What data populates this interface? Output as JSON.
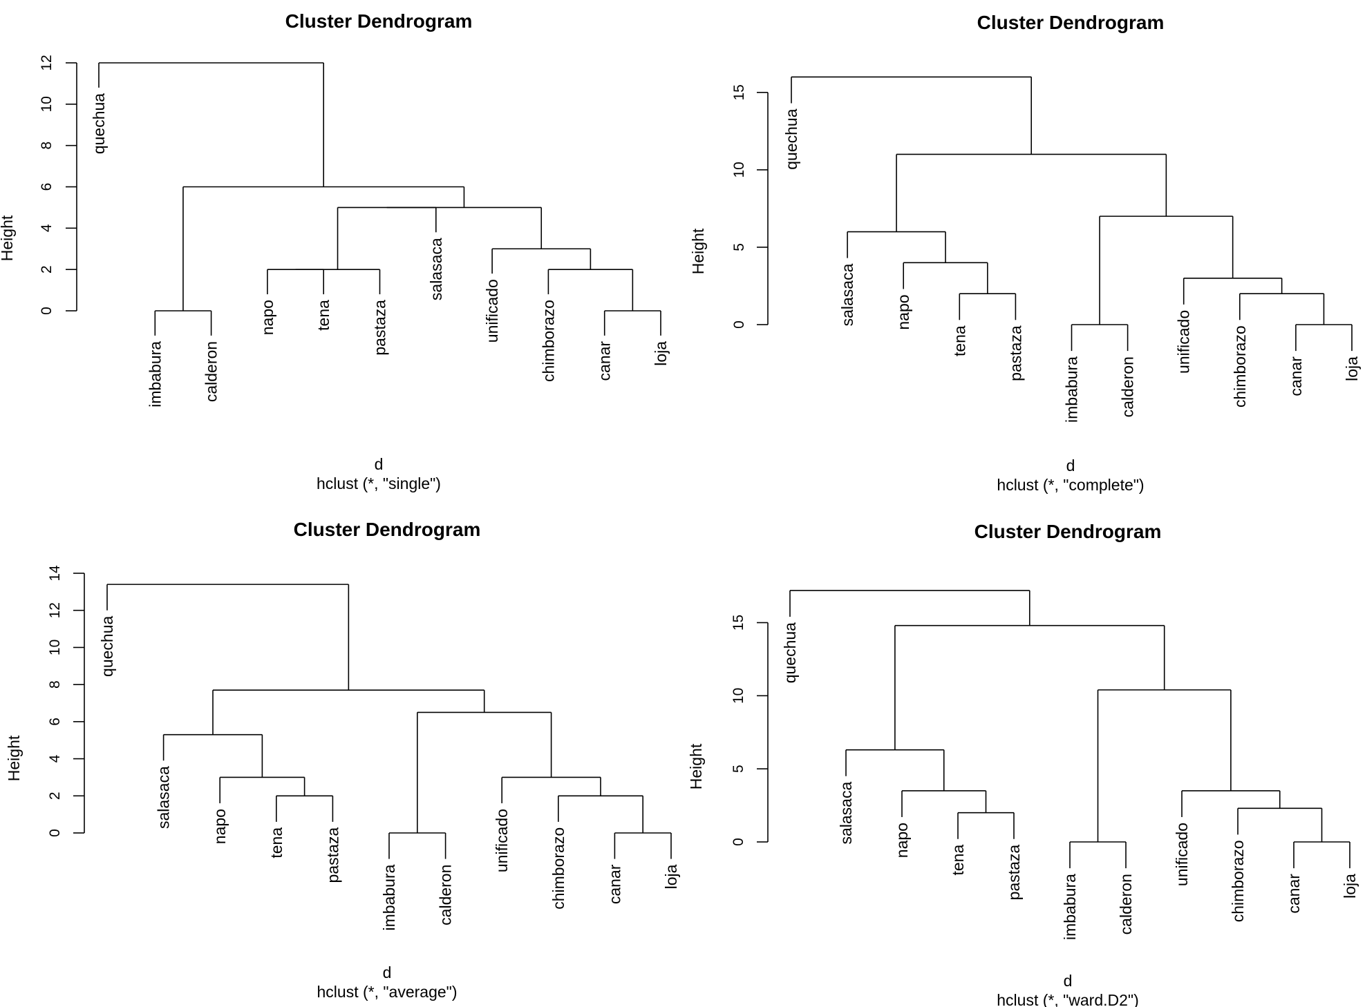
{
  "chart_data": [
    {
      "type": "dendrogram",
      "title": "Cluster Dendrogram",
      "xlabel": "d",
      "sublabel": "hclust (*, \"single\")",
      "ylabel": "Height",
      "yticks": [
        0,
        2,
        4,
        6,
        8,
        10,
        12
      ],
      "ylim": [
        0,
        12
      ],
      "leaves": [
        "quechua",
        "imbabura",
        "calderon",
        "napo",
        "tena",
        "pastaza",
        "salasaca",
        "unificado",
        "chimborazo",
        "canar",
        "loja"
      ],
      "merges": [
        {
          "a": "imbabura",
          "b": "calderon",
          "height": 0.0
        },
        {
          "a": "canar",
          "b": "loja",
          "height": 0.0
        },
        {
          "a": "napo",
          "b": "tena",
          "height": 2.0
        },
        {
          "a": "chimborazo",
          "b": "canar+loja",
          "height": 2.0
        },
        {
          "a": "napo+tena",
          "b": "pastaza",
          "height": 2.0
        },
        {
          "a": "unificado",
          "b": "chimborazo+canar+loja",
          "height": 3.0
        },
        {
          "a": "napo+tena+pastaza",
          "b": "salasaca",
          "height": 5.0
        },
        {
          "a": "napo..salasaca",
          "b": "unificado..loja",
          "height": 5.0
        },
        {
          "a": "imbabura+calderon",
          "b": "napo..loja",
          "height": 6.0
        },
        {
          "a": "quechua",
          "b": "imbabura..loja",
          "height": 12.0
        }
      ]
    },
    {
      "type": "dendrogram",
      "title": "Cluster Dendrogram",
      "xlabel": "d",
      "sublabel": "hclust (*, \"complete\")",
      "ylabel": "Height",
      "yticks": [
        0,
        5,
        10,
        15
      ],
      "ylim": [
        0,
        17
      ],
      "leaves": [
        "quechua",
        "salasaca",
        "napo",
        "tena",
        "pastaza",
        "imbabura",
        "calderon",
        "unificado",
        "chimborazo",
        "canar",
        "loja"
      ],
      "merges": [
        {
          "a": "imbabura",
          "b": "calderon",
          "height": 0.0
        },
        {
          "a": "canar",
          "b": "loja",
          "height": 0.0
        },
        {
          "a": "tena",
          "b": "pastaza",
          "height": 2.0
        },
        {
          "a": "chimborazo",
          "b": "canar+loja",
          "height": 2.0
        },
        {
          "a": "unificado",
          "b": "chimborazo+canar+loja",
          "height": 3.0
        },
        {
          "a": "napo",
          "b": "tena+pastaza",
          "height": 4.0
        },
        {
          "a": "salasaca",
          "b": "napo+tena+pastaza",
          "height": 6.0
        },
        {
          "a": "imbabura+calderon",
          "b": "unificado..loja",
          "height": 7.0
        },
        {
          "a": "salasaca..pastaza",
          "b": "imbabura..loja",
          "height": 11.0
        },
        {
          "a": "quechua",
          "b": "salasaca..loja",
          "height": 16.0
        }
      ]
    },
    {
      "type": "dendrogram",
      "title": "Cluster Dendrogram",
      "xlabel": "d",
      "sublabel": "hclust (*, \"average\")",
      "ylabel": "Height",
      "yticks": [
        0,
        2,
        4,
        6,
        8,
        10,
        12,
        14
      ],
      "ylim": [
        0,
        14
      ],
      "leaves": [
        "quechua",
        "salasaca",
        "napo",
        "tena",
        "pastaza",
        "imbabura",
        "calderon",
        "unificado",
        "chimborazo",
        "canar",
        "loja"
      ],
      "merges": [
        {
          "a": "imbabura",
          "b": "calderon",
          "height": 0.0
        },
        {
          "a": "canar",
          "b": "loja",
          "height": 0.0
        },
        {
          "a": "tena",
          "b": "pastaza",
          "height": 2.0
        },
        {
          "a": "chimborazo",
          "b": "canar+loja",
          "height": 2.0
        },
        {
          "a": "napo",
          "b": "tena+pastaza",
          "height": 3.0
        },
        {
          "a": "unificado",
          "b": "chimborazo+canar+loja",
          "height": 3.0
        },
        {
          "a": "salasaca",
          "b": "napo+tena+pastaza",
          "height": 5.3
        },
        {
          "a": "imbabura+calderon",
          "b": "unificado..loja",
          "height": 6.5
        },
        {
          "a": "salasaca..pastaza",
          "b": "imbabura..loja",
          "height": 7.7
        },
        {
          "a": "quechua",
          "b": "salasaca..loja",
          "height": 13.4
        }
      ]
    },
    {
      "type": "dendrogram",
      "title": "Cluster Dendrogram",
      "xlabel": "d",
      "sublabel": "hclust (*, \"ward.D2\")",
      "ylabel": "Height",
      "yticks": [
        0,
        5,
        10,
        15
      ],
      "ylim": [
        0,
        18
      ],
      "leaves": [
        "quechua",
        "salasaca",
        "napo",
        "tena",
        "pastaza",
        "imbabura",
        "calderon",
        "unificado",
        "chimborazo",
        "canar",
        "loja"
      ],
      "merges": [
        {
          "a": "imbabura",
          "b": "calderon",
          "height": 0.0
        },
        {
          "a": "canar",
          "b": "loja",
          "height": 0.0
        },
        {
          "a": "tena",
          "b": "pastaza",
          "height": 2.0
        },
        {
          "a": "chimborazo",
          "b": "canar+loja",
          "height": 2.3
        },
        {
          "a": "napo",
          "b": "tena+pastaza",
          "height": 3.5
        },
        {
          "a": "unificado",
          "b": "chimborazo+canar+loja",
          "height": 3.5
        },
        {
          "a": "salasaca",
          "b": "napo+tena+pastaza",
          "height": 6.3
        },
        {
          "a": "imbabura+calderon",
          "b": "unificado..loja",
          "height": 10.4
        },
        {
          "a": "salasaca..pastaza",
          "b": "imbabura..loja",
          "height": 14.8
        },
        {
          "a": "quechua",
          "b": "salasaca..loja",
          "height": 17.2
        }
      ]
    }
  ]
}
